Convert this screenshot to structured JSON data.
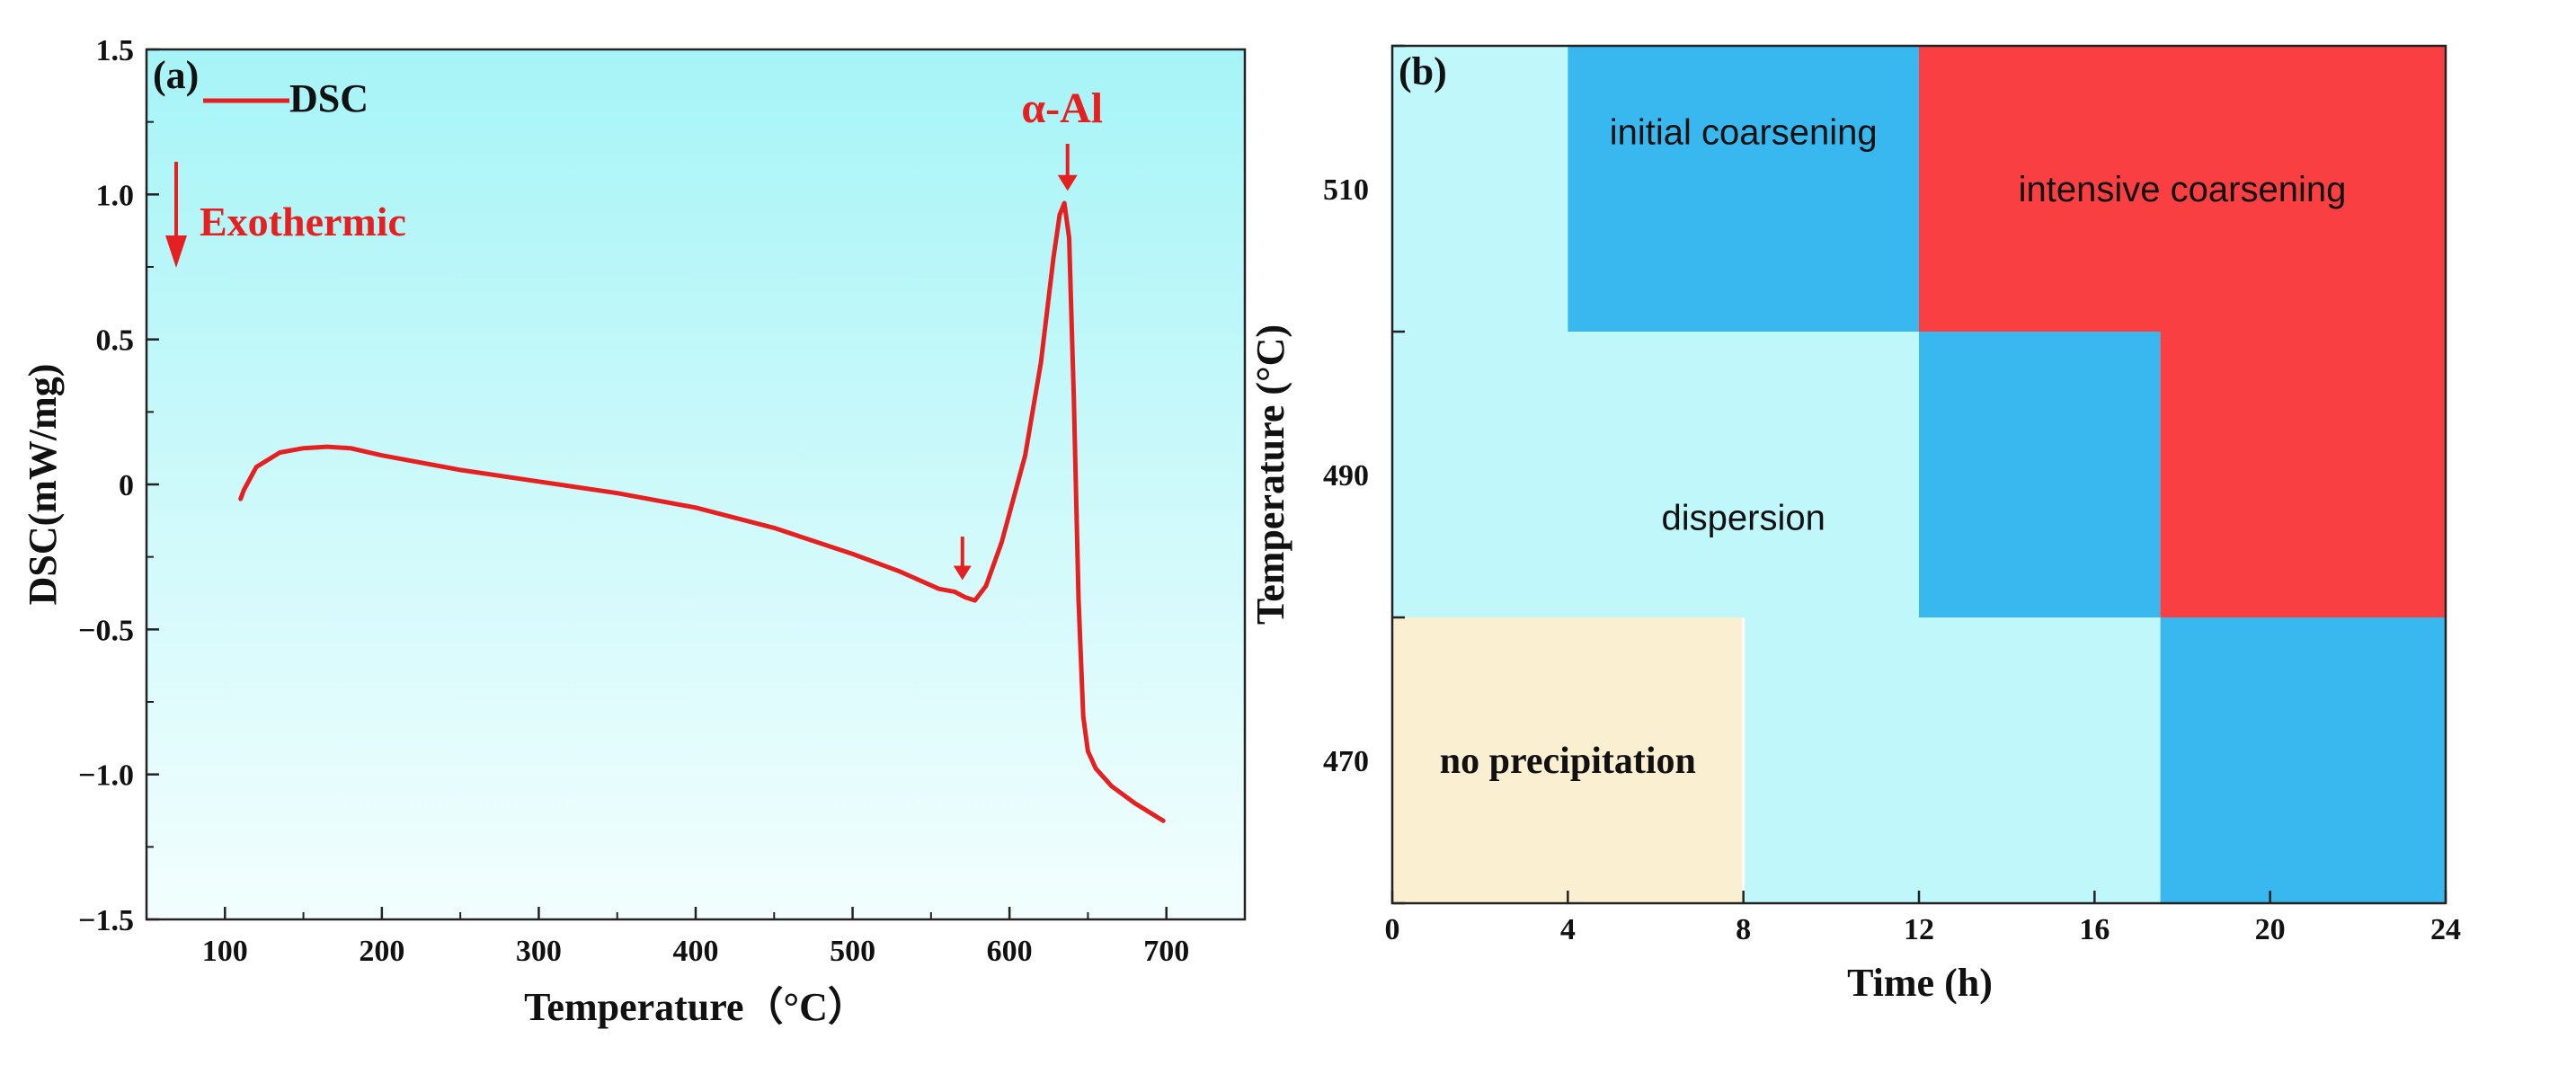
{
  "chart_data": [
    {
      "type": "line",
      "panel_label": "(a)",
      "legend": "DSC",
      "xlabel": "Temperature（°C）",
      "ylabel": "DSC(mW/mg)",
      "xlim": [
        50,
        750
      ],
      "ylim": [
        -1.5,
        1.5
      ],
      "xticks": [
        100,
        200,
        300,
        400,
        500,
        600,
        700
      ],
      "xtick_labels": [
        "100",
        "200",
        "300",
        "400",
        "500",
        "600",
        "700"
      ],
      "yticks": [
        -1.5,
        -1.0,
        -0.5,
        0,
        0.5,
        1.0,
        1.5
      ],
      "ytick_labels": [
        "−1.5",
        "−1.0",
        "−0.5",
        "0",
        "0.5",
        "1.0",
        "1.5"
      ],
      "series": [
        {
          "name": "DSC",
          "color": "#e62020",
          "x": [
            110,
            112,
            120,
            135,
            150,
            165,
            180,
            200,
            250,
            300,
            350,
            400,
            450,
            500,
            530,
            555,
            565,
            572,
            578,
            585,
            595,
            610,
            620,
            628,
            632,
            635,
            638,
            641,
            644,
            647,
            650,
            655,
            665,
            680,
            698
          ],
          "y": [
            -0.05,
            -0.02,
            0.06,
            0.11,
            0.125,
            0.13,
            0.125,
            0.1,
            0.05,
            0.01,
            -0.03,
            -0.08,
            -0.15,
            -0.24,
            -0.3,
            -0.36,
            -0.37,
            -0.39,
            -0.4,
            -0.35,
            -0.2,
            0.1,
            0.42,
            0.78,
            0.93,
            0.97,
            0.85,
            0.3,
            -0.4,
            -0.8,
            -0.92,
            -0.98,
            -1.04,
            -1.1,
            -1.16
          ]
        }
      ],
      "annotations": {
        "peak_label": "α-Al",
        "exo_label": "Exothermic",
        "peak_arrow_x": 637,
        "small_arrow_x": 570
      },
      "background": {
        "top_color": "#a6f4f7",
        "bottom_color": "#f3fefe"
      }
    },
    {
      "type": "heatmap",
      "panel_label": "(b)",
      "xlabel": "Time (h)",
      "ylabel": "Temperature (°C)",
      "xlim": [
        0,
        24
      ],
      "xticks": [
        0,
        4,
        8,
        12,
        16,
        20,
        24
      ],
      "xtick_labels": [
        "0",
        "4",
        "8",
        "12",
        "16",
        "20",
        "24"
      ],
      "y_rows": [
        "470",
        "490",
        "510"
      ],
      "y_band_edges": [
        460,
        480,
        500,
        520
      ],
      "colors": {
        "dispersion": "#c0f7fb",
        "initial_coarsening": "#38b8ee",
        "intensive_coarsening": "#f93f41",
        "no_precipitation": "#fbefd1"
      },
      "cells": [
        {
          "state": "no_precipitation",
          "x0": 0,
          "x1": 8,
          "y0": 460,
          "y1": 480
        },
        {
          "state": "dispersion",
          "x0": 8,
          "x1": 17.5,
          "y0": 460,
          "y1": 480
        },
        {
          "state": "initial_coarsening",
          "x0": 17.5,
          "x1": 24,
          "y0": 460,
          "y1": 480
        },
        {
          "state": "dispersion",
          "x0": 0,
          "x1": 12,
          "y0": 480,
          "y1": 500
        },
        {
          "state": "initial_coarsening",
          "x0": 12,
          "x1": 17.5,
          "y0": 480,
          "y1": 500
        },
        {
          "state": "intensive_coarsening",
          "x0": 17.5,
          "x1": 24,
          "y0": 480,
          "y1": 500
        },
        {
          "state": "dispersion",
          "x0": 0,
          "x1": 4,
          "y0": 500,
          "y1": 520
        },
        {
          "state": "initial_coarsening",
          "x0": 4,
          "x1": 12,
          "y0": 500,
          "y1": 520
        },
        {
          "state": "intensive_coarsening",
          "x0": 12,
          "x1": 24,
          "y0": 500,
          "y1": 520
        }
      ],
      "labels": [
        {
          "text": "initial coarsening",
          "x": 8,
          "y": 514
        },
        {
          "text": "intensive coarsening",
          "x": 18,
          "y": 510
        },
        {
          "text": "dispersion",
          "x": 8,
          "y": 487
        },
        {
          "text": "no precipitation",
          "x": 4,
          "y": 470
        }
      ]
    }
  ]
}
